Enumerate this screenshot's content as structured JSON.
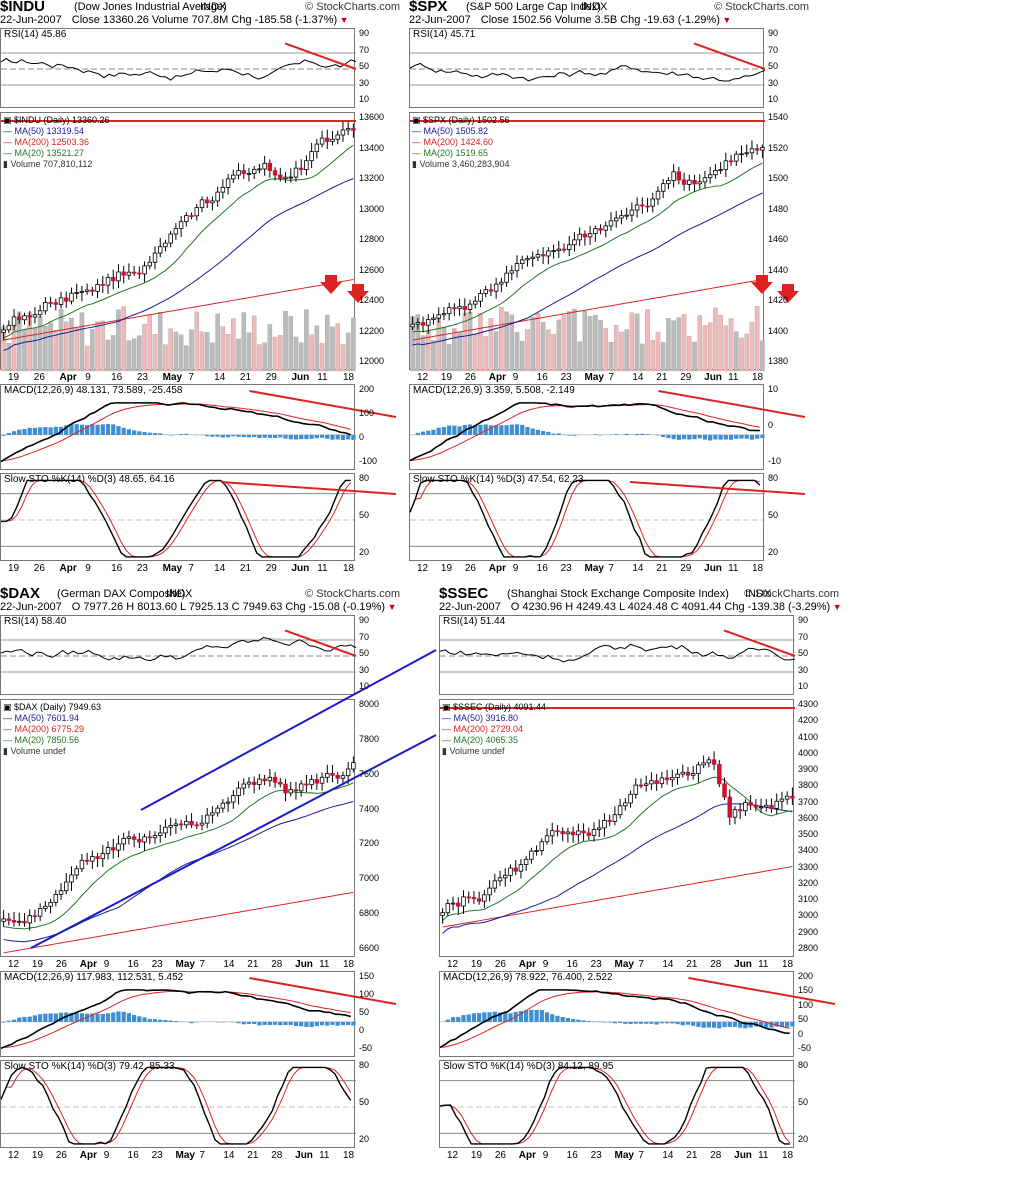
{
  "charts": [
    {
      "id": "indu",
      "symbol": "$INDU",
      "name": "(Dow Jones Industrial Average)",
      "exchange": "INDX",
      "brand": "© StockCharts.com",
      "date": "22-Jun-2007",
      "quote": "Close 13360.26  Volume 707.8M  Chg -185.58 (-1.37%)",
      "rsi_label": "RSI(14) 45.86",
      "price_label": "$INDU (Daily) 13360.26",
      "ma50": "MA(50) 13319.54",
      "ma200": "MA(200) 12503.36",
      "ma20": "MA(20) 13521.27",
      "volume": "Volume 707,810,112",
      "macd_label": "MACD(12,26,9) 48.131, 73.589, -25.458",
      "sto_label": "Slow STO %K(14) %D(3) 48.65, 64.16",
      "price_ticks": [
        "13600",
        "13400",
        "13200",
        "13000",
        "12800",
        "12600",
        "12400",
        "12200",
        "12000"
      ],
      "rsi_ticks": [
        "90",
        "70",
        "50",
        "30",
        "10"
      ],
      "macd_ticks": [
        "200",
        "100",
        "0",
        "-100"
      ],
      "sto_ticks": [
        "80",
        "50",
        "20"
      ],
      "dates": [
        "19",
        "26",
        "Apr",
        "9",
        "16",
        "23",
        "May",
        "7",
        "14",
        "21",
        "29",
        "Jun",
        "11",
        "18"
      ],
      "months": [
        "Apr",
        "May",
        "Jun"
      ]
    },
    {
      "id": "spx",
      "symbol": "$SPX",
      "name": "(S&P 500 Large Cap Index)",
      "exchange": "INDX",
      "brand": "© StockCharts.com",
      "date": "22-Jun-2007",
      "quote": "Close 1502.56  Volume 3.5B  Chg -19.63 (-1.29%)",
      "rsi_label": "RSI(14) 45.71",
      "price_label": "$SPX (Daily) 1502.56",
      "ma50": "MA(50) 1505.82",
      "ma200": "MA(200) 1424.60",
      "ma20": "MA(20) 1519.65",
      "volume": "Volume 3,460,283,904",
      "macd_label": "MACD(12,26,9) 3.359, 5.508, -2.149",
      "sto_label": "Slow STO %K(14) %D(3) 47.54, 62.23",
      "price_ticks": [
        "1540",
        "1520",
        "1500",
        "1480",
        "1460",
        "1440",
        "1420",
        "1400",
        "1380"
      ],
      "rsi_ticks": [
        "90",
        "70",
        "50",
        "30",
        "10"
      ],
      "macd_ticks": [
        "10",
        "0",
        "-10"
      ],
      "sto_ticks": [
        "80",
        "50",
        "20"
      ],
      "dates": [
        "12",
        "19",
        "26",
        "Apr",
        "9",
        "16",
        "23",
        "May",
        "7",
        "14",
        "21",
        "29",
        "Jun",
        "11",
        "18"
      ],
      "months": [
        "Apr",
        "May",
        "Jun"
      ]
    },
    {
      "id": "dax",
      "symbol": "$DAX",
      "name": "(German DAX Composite)",
      "exchange": "INDX",
      "brand": "© StockCharts.com",
      "date": "22-Jun-2007",
      "quote": "O 7977.26  H 8013.60  L 7925.13  C 7949.63  Chg -15.08 (-0.19%)",
      "rsi_label": "RSI(14) 58.40",
      "price_label": "$DAX (Daily) 7949.63",
      "ma50": "MA(50) 7601.94",
      "ma200": "MA(200) 6775.29",
      "ma20": "MA(20) 7850.56",
      "volume": "Volume undef",
      "macd_label": "MACD(12,26,9) 117.983, 112.531, 5.452",
      "sto_label": "Slow STO %K(14) %D(3) 79.42, 85.33",
      "price_ticks": [
        "8000",
        "7800",
        "7600",
        "7400",
        "7200",
        "7000",
        "6800",
        "6600"
      ],
      "rsi_ticks": [
        "90",
        "70",
        "50",
        "30",
        "10"
      ],
      "macd_ticks": [
        "150",
        "100",
        "50",
        "0",
        "-50"
      ],
      "sto_ticks": [
        "80",
        "50",
        "20"
      ],
      "dates": [
        "12",
        "19",
        "26",
        "Apr",
        "9",
        "16",
        "23",
        "May",
        "7",
        "14",
        "21",
        "28",
        "Jun",
        "11",
        "18"
      ],
      "months": [
        "Apr",
        "May",
        "Jun"
      ]
    },
    {
      "id": "ssec",
      "symbol": "$SSEC",
      "name": "(Shanghai Stock Exchange Composite Index)",
      "exchange": "INDX",
      "brand": "© StockCharts.com",
      "date": "22-Jun-2007",
      "quote": "O 4230.96  H 4249.43  L 4024.48  C 4091.44  Chg -139.38 (-3.29%)",
      "rsi_label": "RSI(14) 51.44",
      "price_label": "$SSEC (Daily) 4091.44",
      "ma50": "MA(50) 3916.80",
      "ma200": "MA(200) 2729.04",
      "ma20": "MA(20) 4065.35",
      "volume": "Volume undef",
      "macd_label": "MACD(12,26,9) 78.922, 76.400, 2.522",
      "sto_label": "Slow STO %K(14) %D(3) 84.12, 89.95",
      "price_ticks": [
        "4300",
        "4200",
        "4100",
        "4000",
        "3900",
        "3800",
        "3700",
        "3600",
        "3500",
        "3400",
        "3300",
        "3200",
        "3100",
        "3000",
        "2900",
        "2800"
      ],
      "rsi_ticks": [
        "90",
        "70",
        "50",
        "30",
        "10"
      ],
      "macd_ticks": [
        "200",
        "150",
        "100",
        "50",
        "0",
        "-50"
      ],
      "sto_ticks": [
        "80",
        "50",
        "20"
      ],
      "dates": [
        "12",
        "19",
        "26",
        "Apr",
        "9",
        "16",
        "23",
        "May",
        "7",
        "14",
        "21",
        "28",
        "Jun",
        "11",
        "18"
      ],
      "months": [
        "Apr",
        "May",
        "Jun"
      ]
    }
  ],
  "colors": {
    "up": "#000000",
    "down": "#cc1133",
    "ma50": "#1a1a99",
    "ma200": "#dd2222",
    "ma20": "#227722",
    "rsi_fill": "#4a7a4a",
    "macd_hist": "#3d8fd1",
    "trend": "#dd2222",
    "channel": "#1a1acc",
    "vol_up": "#bbbbbb",
    "vol_down": "#f0b8b8"
  }
}
